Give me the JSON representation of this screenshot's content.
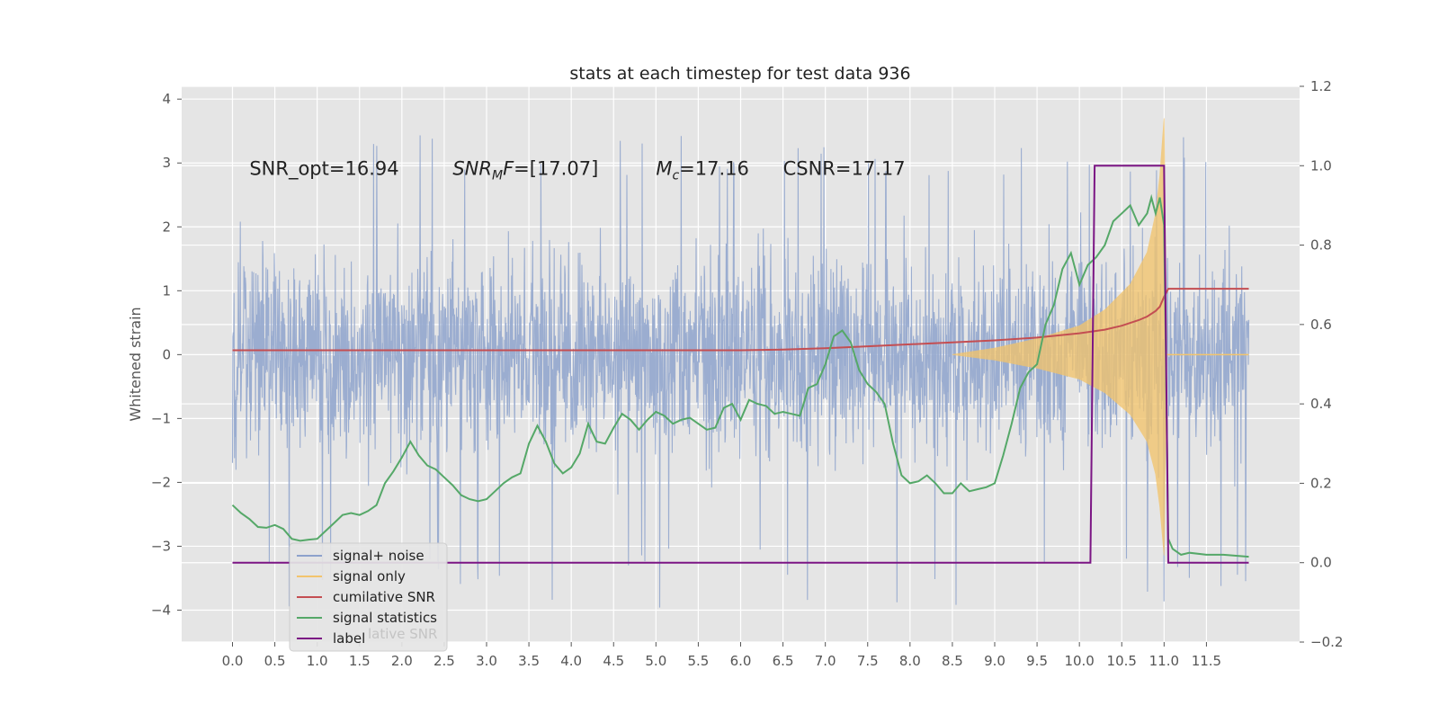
{
  "chart_data": {
    "type": "line",
    "title": "stats at each timestep for test data 936",
    "xlabel": "",
    "ylabel": "Whitened strain",
    "xlim": [
      -0.6,
      12.6
    ],
    "ylim": [
      -4.5,
      4.2
    ],
    "y2lim": [
      -0.2,
      1.2
    ],
    "grid": true,
    "x_ticks": [
      "0.0",
      "0.5",
      "1.0",
      "1.5",
      "2.0",
      "2.5",
      "3.0",
      "3.5",
      "4.0",
      "4.5",
      "5.0",
      "5.5",
      "6.0",
      "6.5",
      "7.0",
      "7.5",
      "8.0",
      "8.5",
      "9.0",
      "9.5",
      "10.0",
      "10.5",
      "11.0",
      "11.5"
    ],
    "y_ticks": [
      "4",
      "3",
      "2",
      "1",
      "0",
      "−1",
      "−2",
      "−3",
      "−4"
    ],
    "y2_ticks": [
      "1.2",
      "1.0",
      "0.8",
      "0.6",
      "0.4",
      "0.2",
      "0.0",
      "−0.2"
    ],
    "annotations": [
      {
        "text": "SNR_opt=16.94",
        "x": 0.2,
        "y": 2.9
      },
      {
        "text": "F=[17.07]",
        "math_prefix": "SNR",
        "math_sub": "M",
        "x": 2.6,
        "y": 2.9
      },
      {
        "text": "=17.16",
        "math_prefix": "M",
        "math_sub": "c",
        "x": 5.0,
        "y": 2.9
      },
      {
        "text": "CSNR=17.17",
        "x": 6.5,
        "y": 2.9
      }
    ],
    "legend": {
      "location": "lower-left",
      "entries": [
        {
          "label": "signal+ noise",
          "color": "#8da2cc"
        },
        {
          "label": "signal only",
          "color": "#f2c46d"
        },
        {
          "label": "cumilative SNR",
          "color": "#c44e52"
        },
        {
          "label": "signal statistics",
          "color": "#55a868"
        },
        {
          "label": "label",
          "color": "#7b1584"
        }
      ],
      "ghost_text": "lative SNR"
    },
    "series": [
      {
        "name": "signal+ noise",
        "axis": "left",
        "color": "#92a6cd",
        "style": "dense-noise",
        "x_range": [
          0.0,
          12.0
        ],
        "envelope_upper": 2.6,
        "envelope_lower": -2.5,
        "peak_max": 3.5,
        "peak_min": -4.0
      },
      {
        "name": "signal only",
        "axis": "left",
        "color": "#f2c46d",
        "style": "chirp",
        "points": [
          [
            8.5,
            0.0
          ],
          [
            9.0,
            0.1
          ],
          [
            9.5,
            0.25
          ],
          [
            10.0,
            0.45
          ],
          [
            10.3,
            0.7
          ],
          [
            10.6,
            1.1
          ],
          [
            10.8,
            1.6
          ],
          [
            10.9,
            2.2
          ],
          [
            10.95,
            2.8
          ],
          [
            11.0,
            3.7
          ],
          [
            11.03,
            0.0
          ]
        ]
      },
      {
        "name": "cumilative SNR",
        "axis": "right",
        "color": "#c44e52",
        "points": [
          [
            0.0,
            0.535
          ],
          [
            6.0,
            0.535
          ],
          [
            6.5,
            0.537
          ],
          [
            7.0,
            0.54
          ],
          [
            7.5,
            0.545
          ],
          [
            8.0,
            0.55
          ],
          [
            8.5,
            0.555
          ],
          [
            9.0,
            0.56
          ],
          [
            9.5,
            0.567
          ],
          [
            10.0,
            0.578
          ],
          [
            10.3,
            0.587
          ],
          [
            10.5,
            0.597
          ],
          [
            10.7,
            0.611
          ],
          [
            10.8,
            0.62
          ],
          [
            10.9,
            0.634
          ],
          [
            10.95,
            0.645
          ],
          [
            11.0,
            0.67
          ],
          [
            11.05,
            0.69
          ],
          [
            12.0,
            0.69
          ]
        ]
      },
      {
        "name": "signal statistics",
        "axis": "right",
        "color": "#55a868",
        "points": [
          [
            0.0,
            0.145
          ],
          [
            0.1,
            0.125
          ],
          [
            0.2,
            0.11
          ],
          [
            0.3,
            0.09
          ],
          [
            0.4,
            0.088
          ],
          [
            0.5,
            0.095
          ],
          [
            0.6,
            0.085
          ],
          [
            0.7,
            0.06
          ],
          [
            0.8,
            0.055
          ],
          [
            0.9,
            0.058
          ],
          [
            1.0,
            0.06
          ],
          [
            1.1,
            0.08
          ],
          [
            1.2,
            0.1
          ],
          [
            1.3,
            0.12
          ],
          [
            1.4,
            0.125
          ],
          [
            1.5,
            0.12
          ],
          [
            1.6,
            0.13
          ],
          [
            1.7,
            0.145
          ],
          [
            1.8,
            0.2
          ],
          [
            1.9,
            0.23
          ],
          [
            2.0,
            0.265
          ],
          [
            2.1,
            0.305
          ],
          [
            2.2,
            0.27
          ],
          [
            2.3,
            0.245
          ],
          [
            2.4,
            0.235
          ],
          [
            2.5,
            0.215
          ],
          [
            2.6,
            0.195
          ],
          [
            2.7,
            0.17
          ],
          [
            2.8,
            0.16
          ],
          [
            2.9,
            0.155
          ],
          [
            3.0,
            0.16
          ],
          [
            3.1,
            0.18
          ],
          [
            3.2,
            0.2
          ],
          [
            3.3,
            0.215
          ],
          [
            3.4,
            0.225
          ],
          [
            3.5,
            0.3
          ],
          [
            3.6,
            0.345
          ],
          [
            3.7,
            0.305
          ],
          [
            3.8,
            0.25
          ],
          [
            3.9,
            0.225
          ],
          [
            4.0,
            0.24
          ],
          [
            4.1,
            0.275
          ],
          [
            4.2,
            0.35
          ],
          [
            4.3,
            0.305
          ],
          [
            4.4,
            0.3
          ],
          [
            4.5,
            0.34
          ],
          [
            4.6,
            0.375
          ],
          [
            4.7,
            0.36
          ],
          [
            4.8,
            0.335
          ],
          [
            4.9,
            0.36
          ],
          [
            5.0,
            0.38
          ],
          [
            5.1,
            0.37
          ],
          [
            5.2,
            0.35
          ],
          [
            5.3,
            0.36
          ],
          [
            5.4,
            0.365
          ],
          [
            5.5,
            0.35
          ],
          [
            5.6,
            0.335
          ],
          [
            5.7,
            0.34
          ],
          [
            5.8,
            0.39
          ],
          [
            5.9,
            0.4
          ],
          [
            6.0,
            0.36
          ],
          [
            6.1,
            0.41
          ],
          [
            6.2,
            0.4
          ],
          [
            6.3,
            0.395
          ],
          [
            6.4,
            0.375
          ],
          [
            6.5,
            0.38
          ],
          [
            6.6,
            0.375
          ],
          [
            6.7,
            0.37
          ],
          [
            6.8,
            0.44
          ],
          [
            6.9,
            0.45
          ],
          [
            7.0,
            0.5
          ],
          [
            7.1,
            0.57
          ],
          [
            7.2,
            0.585
          ],
          [
            7.3,
            0.555
          ],
          [
            7.4,
            0.485
          ],
          [
            7.5,
            0.45
          ],
          [
            7.6,
            0.43
          ],
          [
            7.7,
            0.4
          ],
          [
            7.8,
            0.3
          ],
          [
            7.9,
            0.22
          ],
          [
            8.0,
            0.2
          ],
          [
            8.1,
            0.205
          ],
          [
            8.2,
            0.22
          ],
          [
            8.3,
            0.2
          ],
          [
            8.4,
            0.175
          ],
          [
            8.5,
            0.175
          ],
          [
            8.6,
            0.2
          ],
          [
            8.7,
            0.18
          ],
          [
            8.8,
            0.185
          ],
          [
            8.9,
            0.19
          ],
          [
            9.0,
            0.2
          ],
          [
            9.1,
            0.27
          ],
          [
            9.2,
            0.35
          ],
          [
            9.3,
            0.44
          ],
          [
            9.4,
            0.48
          ],
          [
            9.5,
            0.5
          ],
          [
            9.6,
            0.6
          ],
          [
            9.7,
            0.65
          ],
          [
            9.8,
            0.74
          ],
          [
            9.9,
            0.78
          ],
          [
            10.0,
            0.7
          ],
          [
            10.1,
            0.75
          ],
          [
            10.2,
            0.77
          ],
          [
            10.3,
            0.8
          ],
          [
            10.4,
            0.86
          ],
          [
            10.5,
            0.88
          ],
          [
            10.6,
            0.9
          ],
          [
            10.7,
            0.85
          ],
          [
            10.8,
            0.88
          ],
          [
            10.85,
            0.92
          ],
          [
            10.9,
            0.88
          ],
          [
            10.95,
            0.92
          ],
          [
            11.0,
            0.85
          ],
          [
            11.05,
            0.06
          ],
          [
            11.1,
            0.035
          ],
          [
            11.2,
            0.02
          ],
          [
            11.3,
            0.025
          ],
          [
            11.5,
            0.02
          ],
          [
            11.7,
            0.02
          ],
          [
            12.0,
            0.015
          ]
        ]
      },
      {
        "name": "label",
        "axis": "right",
        "color": "#7b1584",
        "points": [
          [
            0.0,
            0.0
          ],
          [
            10.13,
            0.0
          ],
          [
            10.18,
            1.0
          ],
          [
            11.0,
            1.0
          ],
          [
            11.05,
            0.0
          ],
          [
            12.0,
            0.0
          ]
        ]
      }
    ]
  }
}
